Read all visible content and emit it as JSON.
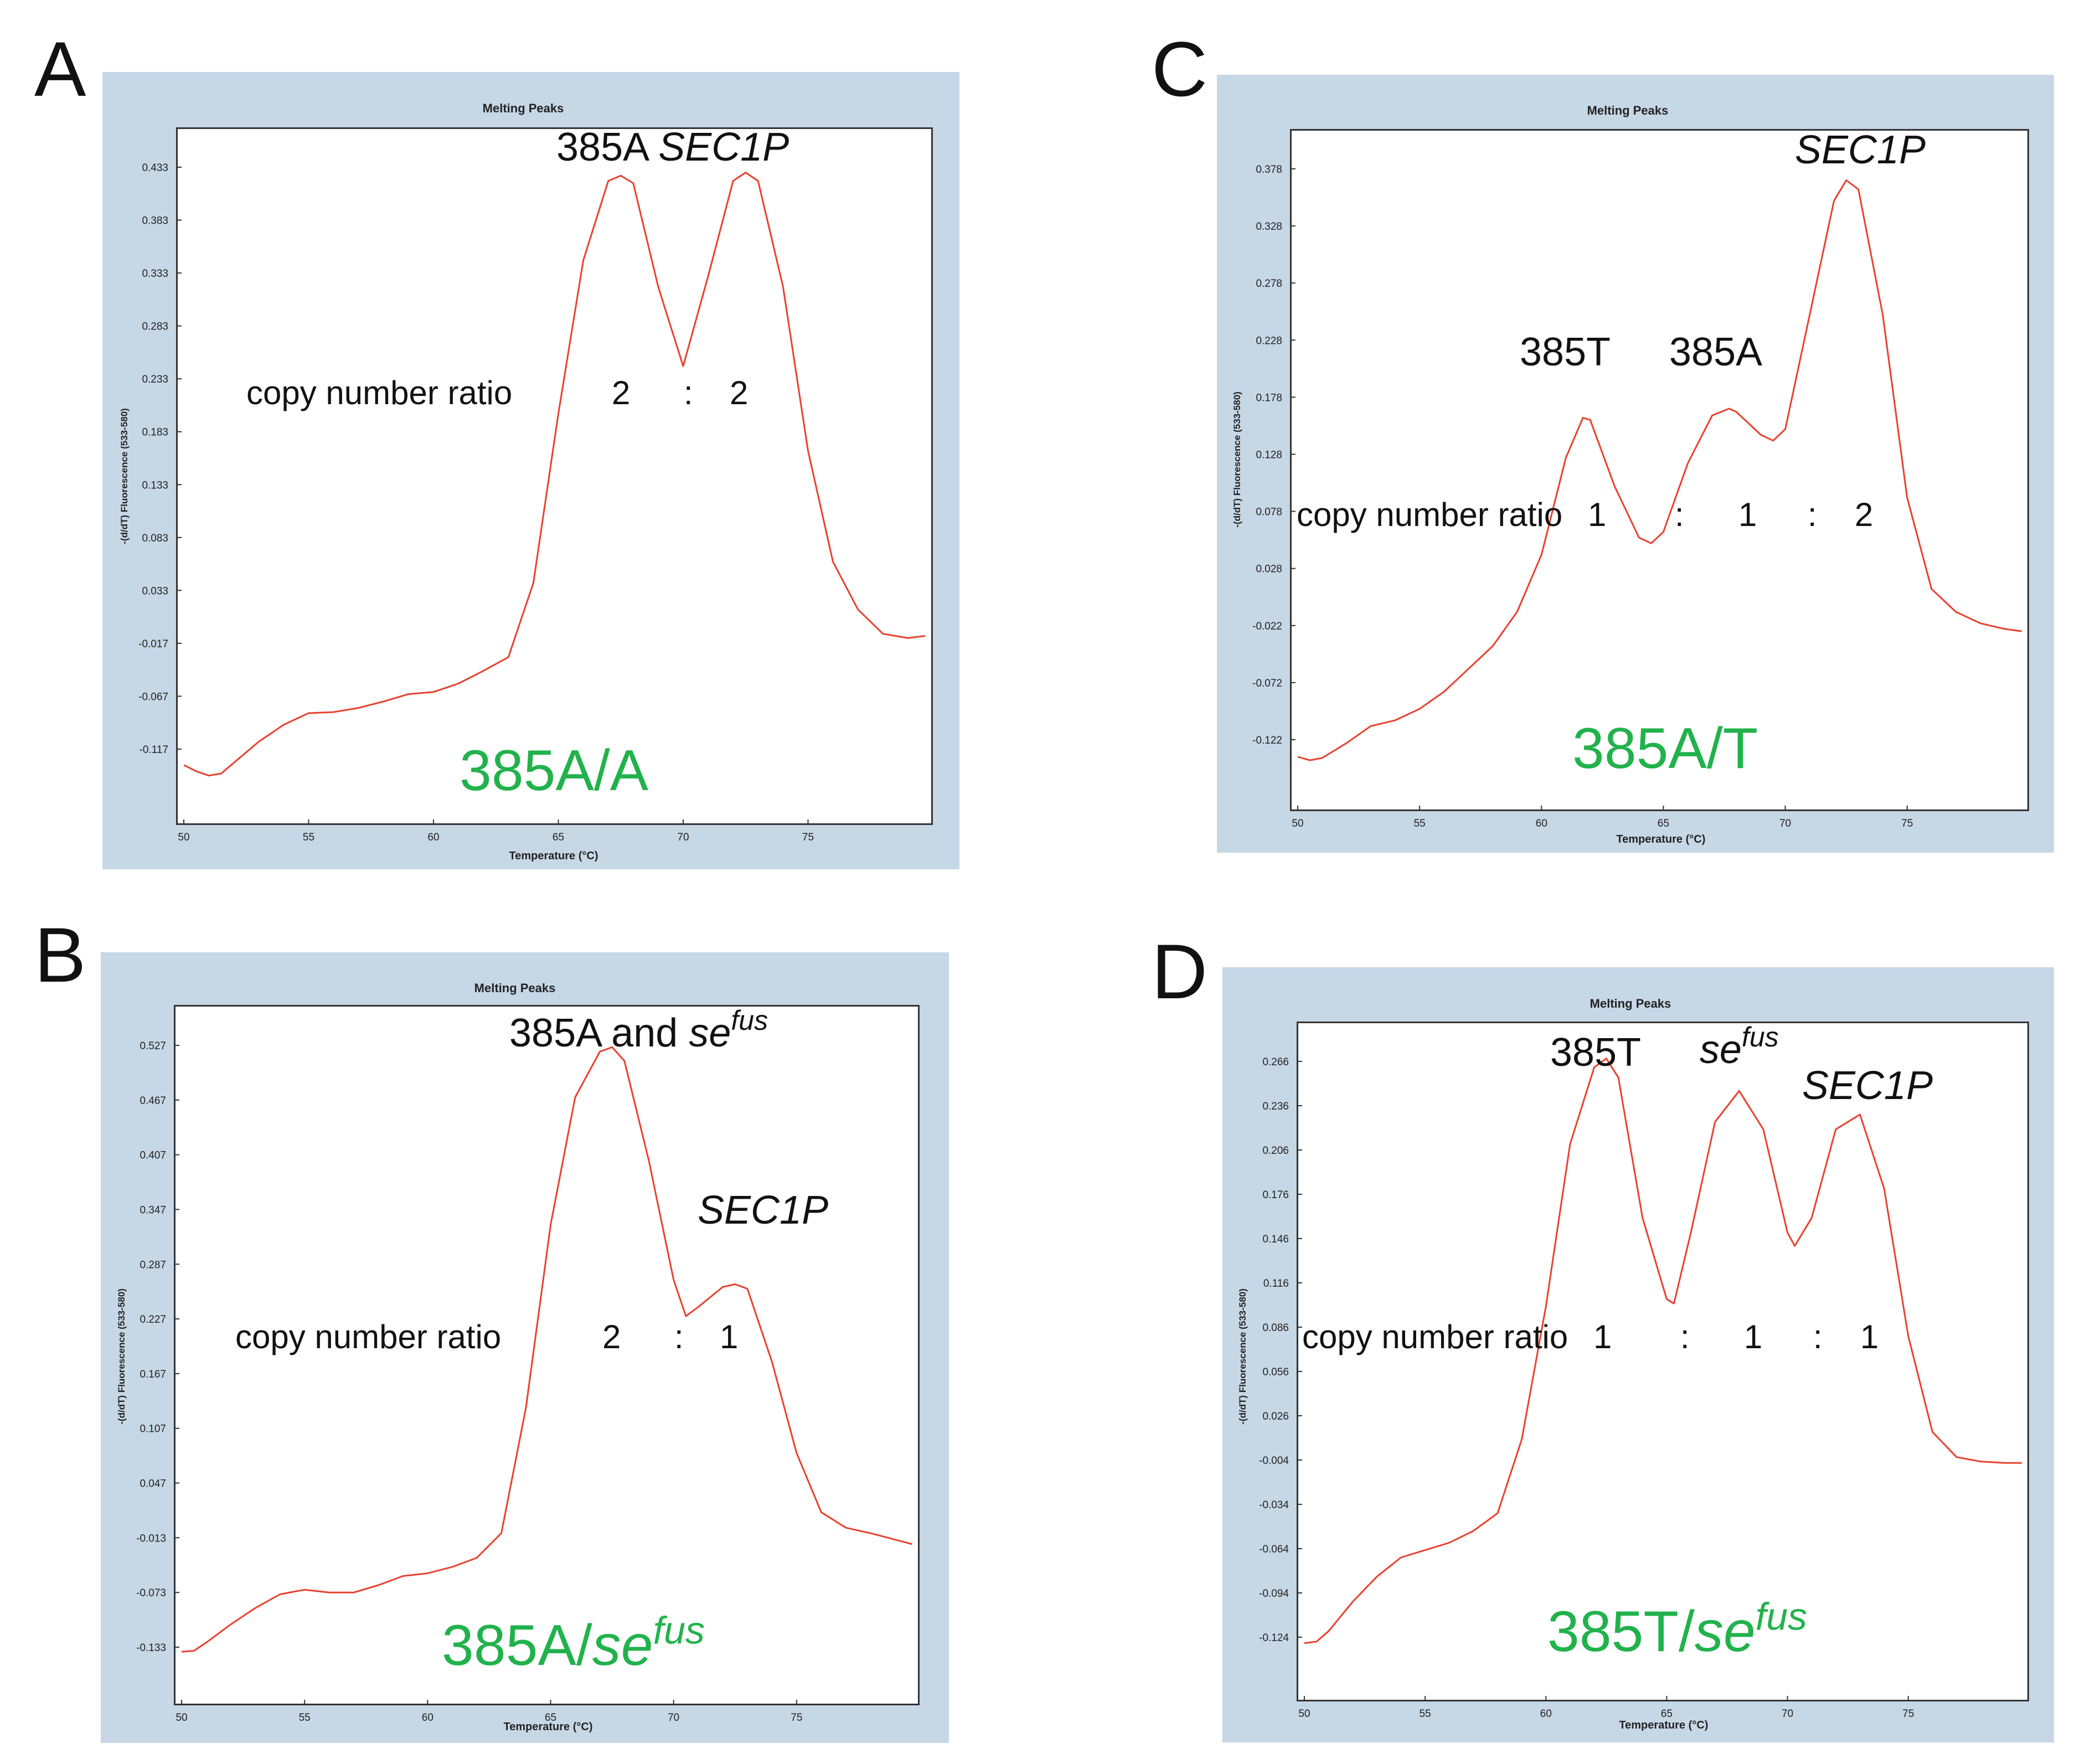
{
  "colors": {
    "curve": "#e8412f",
    "background": "#c6d7e6",
    "genotype": "#22b24c"
  },
  "chart_data": [
    {
      "panel": "A",
      "type": "line",
      "title": "Melting Peaks",
      "xlabel": "Temperature (°C)",
      "ylabel": "-(d/dT) Fluorescence (533-580)",
      "xlim": [
        50,
        80
      ],
      "ylim": [
        -0.167,
        0.473
      ],
      "xticks": [
        "50",
        "55",
        "60",
        "65",
        "70",
        "75"
      ],
      "yticks": [
        "0.433",
        "0.383",
        "0.333",
        "0.283",
        "0.233",
        "0.183",
        "0.133",
        "0.083",
        "0.033",
        "-0.017",
        "-0.067",
        "-0.117"
      ],
      "series": [
        {
          "name": "melting peak",
          "x": [
            50,
            50.5,
            51,
            51.5,
            52,
            53,
            54,
            55,
            56,
            57,
            58,
            59,
            60,
            61,
            62,
            63,
            64,
            65,
            66,
            67,
            67.5,
            68,
            69,
            70,
            71,
            72,
            72.5,
            73,
            74,
            75,
            76,
            77,
            78,
            79,
            79.7
          ],
          "y": [
            -0.132,
            -0.138,
            -0.142,
            -0.14,
            -0.13,
            -0.11,
            -0.094,
            -0.083,
            -0.082,
            -0.078,
            -0.072,
            -0.065,
            -0.063,
            -0.055,
            -0.043,
            -0.03,
            0.04,
            0.2,
            0.345,
            0.42,
            0.425,
            0.418,
            0.32,
            0.245,
            0.33,
            0.42,
            0.428,
            0.42,
            0.32,
            0.165,
            0.06,
            0.015,
            -0.008,
            -0.012,
            -0.01
          ]
        }
      ],
      "annotations": {
        "peak_label_1": "385A",
        "peak_label_2": "SEC1P",
        "ratio_label": "copy number ratio",
        "ratio_1": "2",
        "sep_1": ":",
        "ratio_2": "2",
        "genotype": "385A/A"
      }
    },
    {
      "panel": "B",
      "type": "line",
      "title": "Melting Peaks",
      "xlabel": "Temperature (°C)",
      "ylabel": "-(d/dT) Fluorescence (533-580)",
      "xlim": [
        50,
        80
      ],
      "ylim": [
        -0.183,
        0.567
      ],
      "xticks": [
        "50",
        "55",
        "60",
        "65",
        "70",
        "75"
      ],
      "yticks": [
        "0.527",
        "0.467",
        "0.407",
        "0.347",
        "0.287",
        "0.227",
        "0.167",
        "0.107",
        "0.047",
        "-0.013",
        "-0.073",
        "-0.133"
      ],
      "series": [
        {
          "name": "melting peak",
          "x": [
            50,
            50.5,
            51,
            52,
            53,
            54,
            55,
            56,
            57,
            58,
            59,
            60,
            61,
            62,
            63,
            64,
            65,
            66,
            67,
            67.5,
            68,
            69,
            70,
            70.5,
            71,
            72,
            72.5,
            73,
            74,
            75,
            76,
            77,
            78,
            79,
            79.7
          ],
          "y": [
            -0.138,
            -0.137,
            -0.128,
            -0.108,
            -0.09,
            -0.075,
            -0.07,
            -0.073,
            -0.073,
            -0.065,
            -0.055,
            -0.052,
            -0.045,
            -0.035,
            -0.008,
            0.13,
            0.33,
            0.47,
            0.52,
            0.525,
            0.51,
            0.4,
            0.27,
            0.23,
            0.24,
            0.262,
            0.265,
            0.26,
            0.18,
            0.08,
            0.015,
            -0.002,
            -0.008,
            -0.015,
            -0.02
          ]
        }
      ],
      "annotations": {
        "peak_label_1": "385A and",
        "peak_label_1b": "se",
        "peak_label_1b_sup": "fus",
        "peak_label_2": "SEC1P",
        "ratio_label": "copy number ratio",
        "ratio_1": "2",
        "sep_1": ":",
        "ratio_2": "1",
        "genotype": "385A/",
        "genotype_b": "se",
        "genotype_b_sup": "fus"
      }
    },
    {
      "panel": "C",
      "type": "line",
      "title": "Melting Peaks",
      "xlabel": "Temperature (°C)",
      "ylabel": "-(d/dT) Fluorescence (533-580)",
      "xlim": [
        50,
        80
      ],
      "ylim": [
        -0.172,
        0.418
      ],
      "xticks": [
        "50",
        "55",
        "60",
        "65",
        "70",
        "75"
      ],
      "yticks": [
        "0.378",
        "0.328",
        "0.278",
        "0.228",
        "0.178",
        "0.128",
        "0.078",
        "0.028",
        "-0.022",
        "-0.072",
        "-0.122"
      ],
      "series": [
        {
          "name": "melting peak",
          "x": [
            50,
            50.5,
            51,
            52,
            53,
            54,
            55,
            56,
            57,
            58,
            59,
            60,
            61,
            61.7,
            62,
            63,
            64,
            64.5,
            65,
            66,
            67,
            67.7,
            68,
            69,
            69.5,
            70,
            71,
            72,
            72.5,
            73,
            74,
            75,
            76,
            77,
            78,
            79,
            79.7
          ],
          "y": [
            -0.137,
            -0.14,
            -0.138,
            -0.125,
            -0.11,
            -0.105,
            -0.095,
            -0.08,
            -0.06,
            -0.04,
            -0.01,
            0.04,
            0.125,
            0.16,
            0.158,
            0.1,
            0.055,
            0.05,
            0.06,
            0.12,
            0.162,
            0.168,
            0.165,
            0.145,
            0.14,
            0.15,
            0.25,
            0.35,
            0.368,
            0.36,
            0.25,
            0.09,
            0.01,
            -0.01,
            -0.02,
            -0.025,
            -0.027
          ]
        }
      ],
      "annotations": {
        "peak_label_1": "385T",
        "peak_label_2": "385A",
        "peak_label_3": "SEC1P",
        "ratio_label": "copy number ratio",
        "ratio_1": "1",
        "sep_1": ":",
        "ratio_2": "1",
        "sep_2": ":",
        "ratio_3": "2",
        "genotype": "385A/T"
      }
    },
    {
      "panel": "D",
      "type": "line",
      "title": "Melting Peaks",
      "xlabel": "Temperature (°C)",
      "ylabel": "-(d/dT) Fluorescence (533-580)",
      "xlim": [
        50,
        80
      ],
      "ylim": [
        -0.164,
        0.296
      ],
      "xticks": [
        "50",
        "55",
        "60",
        "65",
        "70",
        "75"
      ],
      "yticks": [
        "0.266",
        "0.236",
        "0.206",
        "0.176",
        "0.146",
        "0.116",
        "0.086",
        "0.056",
        "0.026",
        "-0.004",
        "-0.034",
        "-0.064",
        "-0.094",
        "-0.124"
      ],
      "series": [
        {
          "name": "melting peak",
          "x": [
            50,
            50.5,
            51,
            52,
            53,
            54,
            55,
            56,
            57,
            58,
            59,
            60,
            61,
            62,
            62.5,
            63,
            64,
            65,
            65.3,
            66,
            67,
            68,
            69,
            70,
            70.3,
            71,
            72,
            73,
            74,
            75,
            76,
            77,
            78,
            79,
            79.7
          ],
          "y": [
            -0.128,
            -0.127,
            -0.12,
            -0.1,
            -0.083,
            -0.07,
            -0.065,
            -0.06,
            -0.052,
            -0.04,
            0.01,
            0.1,
            0.21,
            0.262,
            0.268,
            0.255,
            0.16,
            0.105,
            0.102,
            0.15,
            0.225,
            0.246,
            0.22,
            0.15,
            0.141,
            0.16,
            0.22,
            0.23,
            0.18,
            0.08,
            0.015,
            -0.002,
            -0.005,
            -0.006,
            -0.006
          ]
        }
      ],
      "annotations": {
        "peak_label_1": "385T",
        "peak_label_2": "se",
        "peak_label_2_sup": "fus",
        "peak_label_3": "SEC1P",
        "ratio_label": "copy number ratio",
        "ratio_1": "1",
        "sep_1": ":",
        "ratio_2": "1",
        "sep_2": ":",
        "ratio_3": "1",
        "genotype": "385T/",
        "genotype_b": "se",
        "genotype_b_sup": "fus"
      }
    }
  ]
}
